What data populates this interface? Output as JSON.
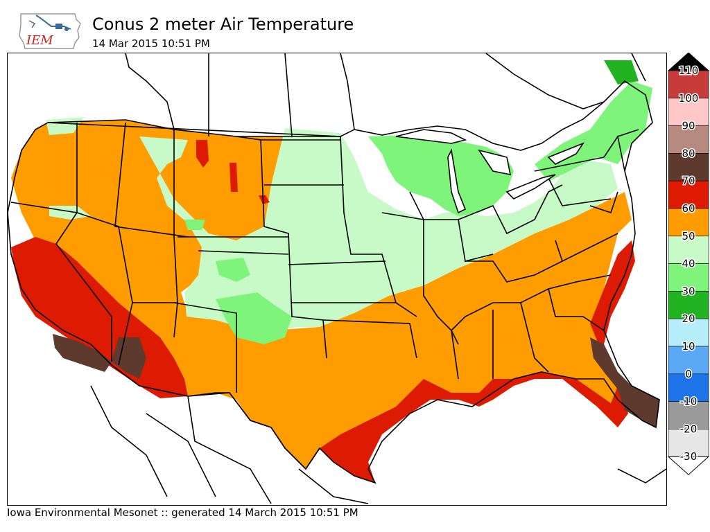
{
  "header": {
    "logo_text": "IEM",
    "title": "Conus 2 meter Air Temperature",
    "subtitle": "14 Mar 2015 10:51 PM"
  },
  "legend": {
    "levels": [
      {
        "label": "110",
        "color": "#000000"
      },
      {
        "label": "100",
        "color": "#c73b3b"
      },
      {
        "label": "90",
        "color": "#ffc7c7"
      },
      {
        "label": "80",
        "color": "#b68a7e"
      },
      {
        "label": "70",
        "color": "#5e3a2e"
      },
      {
        "label": "60",
        "color": "#dd1a02"
      },
      {
        "label": "50",
        "color": "#ff9d00"
      },
      {
        "label": "40",
        "color": "#c8fac8"
      },
      {
        "label": "30",
        "color": "#7ff47a"
      },
      {
        "label": "20",
        "color": "#22b322"
      },
      {
        "label": "10",
        "color": "#b5edf8"
      },
      {
        "label": "0",
        "color": "#5ba8f5"
      },
      {
        "label": "-10",
        "color": "#1d73e8"
      },
      {
        "label": "-20",
        "color": "#9a9a9a"
      },
      {
        "label": "-30",
        "color": "#e6e6e6"
      }
    ],
    "bottom_color": "#ffffff"
  },
  "footer": {
    "text": "Iowa Environmental Mesonet :: generated 14 March 2015 10:51 PM"
  }
}
